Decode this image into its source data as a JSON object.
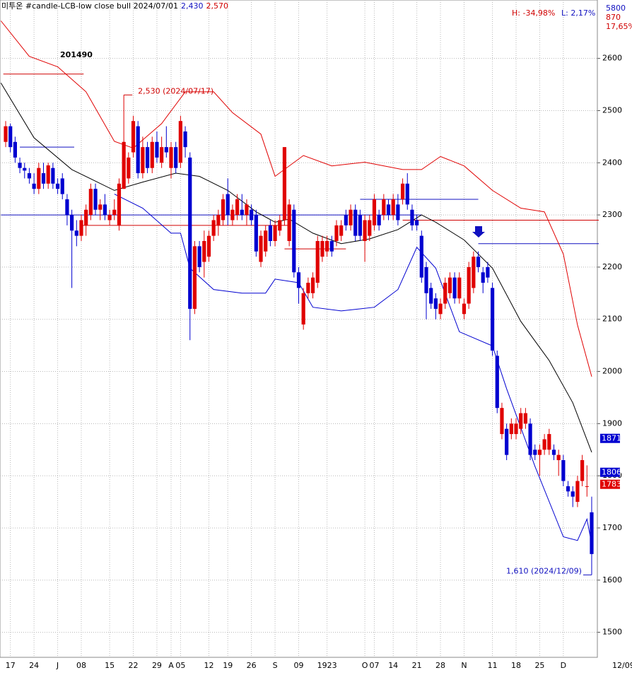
{
  "chart_data": {
    "type": "candlestick",
    "title_parts": [
      {
        "text": "미투온 #candle-LCB-low close bull  2024/07/01",
        "color": "#000000"
      },
      {
        "text": "2,430",
        "color": "#1010c0"
      },
      {
        "text": "2,570",
        "color": "#d00000"
      }
    ],
    "code": "201490",
    "high_label": "H: -34,98%",
    "low_label": "L: 2,17%",
    "corner_labels": [
      "5800",
      "870",
      "17,65%"
    ],
    "annotations": [
      {
        "text": "2,530 (2024/07/17)",
        "color": "#d00000",
        "index": 25,
        "price": 2530
      },
      {
        "text": "1,610 (2024/12/09)",
        "color": "#1010c0",
        "index": 124,
        "price": 1610
      }
    ],
    "last_date": "12/09",
    "up_color": "#e00000",
    "down_color": "#0000d0",
    "open": [
      2440,
      2470,
      2440,
      2400,
      2390,
      2380,
      2360,
      2350,
      2380,
      2360,
      2390,
      2360,
      2370,
      2330,
      2300,
      2270,
      2260,
      2280,
      2300,
      2350,
      2310,
      2320,
      2290,
      2300,
      2280,
      2350,
      2370,
      2420,
      2470,
      2380,
      2430,
      2390,
      2440,
      2400,
      2430,
      2390,
      2430,
      2400,
      2460,
      2410,
      2120,
      2240,
      2210,
      2220,
      2260,
      2280,
      2290,
      2340,
      2290,
      2300,
      2310,
      2300,
      2310,
      2300,
      2210,
      2230,
      2280,
      2250,
      2270,
      2290,
      2250,
      2310,
      2190,
      2090,
      2150,
      2150,
      2170,
      2220,
      2230,
      2250,
      2250,
      2260,
      2300,
      2280,
      2310,
      2300,
      2250,
      2260,
      2280,
      2300,
      2300,
      2320,
      2300,
      2320,
      2330,
      2360,
      2310,
      2290,
      2260,
      2200,
      2160,
      2140,
      2110,
      2130,
      2150,
      2180,
      2140,
      2110,
      2130,
      2160,
      2220,
      2190,
      2200,
      2160,
      2030,
      1880,
      1890,
      1880,
      1880,
      1890,
      1900,
      1900,
      1850,
      1840,
      1850,
      1850,
      1850,
      1830,
      1830,
      1780,
      1770,
      1750,
      1790,
      1780,
      1730
    ],
    "high": [
      2480,
      2475,
      2450,
      2410,
      2400,
      2390,
      2380,
      2400,
      2400,
      2400,
      2400,
      2370,
      2380,
      2340,
      2310,
      2290,
      2300,
      2320,
      2360,
      2360,
      2330,
      2340,
      2310,
      2330,
      2370,
      2530,
      2420,
      2490,
      2480,
      2450,
      2440,
      2450,
      2460,
      2450,
      2470,
      2440,
      2440,
      2490,
      2470,
      2420,
      2250,
      2250,
      2270,
      2270,
      2300,
      2310,
      2340,
      2370,
      2320,
      2340,
      2340,
      2330,
      2320,
      2310,
      2270,
      2280,
      2290,
      2290,
      2300,
      2430,
      2330,
      2320,
      2200,
      2160,
      2180,
      2190,
      2260,
      2260,
      2260,
      2260,
      2290,
      2290,
      2310,
      2320,
      2320,
      2310,
      2300,
      2300,
      2340,
      2310,
      2340,
      2330,
      2340,
      2340,
      2370,
      2380,
      2320,
      2300,
      2270,
      2210,
      2170,
      2150,
      2140,
      2180,
      2190,
      2190,
      2190,
      2140,
      2210,
      2230,
      2230,
      2200,
      2210,
      2170,
      2040,
      1940,
      1900,
      1910,
      1910,
      1930,
      1930,
      1910,
      1860,
      1860,
      1880,
      1890,
      1860,
      1850,
      1840,
      1790,
      1780,
      1800,
      1840,
      1820,
      1760
    ],
    "low": [
      2430,
      2420,
      2400,
      2380,
      2370,
      2360,
      2340,
      2340,
      2350,
      2350,
      2350,
      2340,
      2330,
      2280,
      2160,
      2240,
      2250,
      2260,
      2290,
      2300,
      2290,
      2290,
      2280,
      2290,
      2270,
      2350,
      2360,
      2410,
      2370,
      2370,
      2380,
      2380,
      2400,
      2390,
      2410,
      2370,
      2380,
      2390,
      2410,
      2060,
      2110,
      2190,
      2180,
      2210,
      2250,
      2260,
      2280,
      2280,
      2280,
      2290,
      2290,
      2280,
      2280,
      2220,
      2200,
      2220,
      2240,
      2240,
      2260,
      2280,
      2240,
      2180,
      2130,
      2080,
      2140,
      2140,
      2160,
      2210,
      2220,
      2220,
      2240,
      2250,
      2270,
      2270,
      2250,
      2250,
      2210,
      2250,
      2270,
      2270,
      2290,
      2290,
      2290,
      2280,
      2320,
      2310,
      2270,
      2270,
      2170,
      2100,
      2120,
      2100,
      2100,
      2120,
      2140,
      2130,
      2130,
      2100,
      2120,
      2150,
      2190,
      2150,
      2170,
      2030,
      1920,
      1870,
      1830,
      1870,
      1870,
      1880,
      1890,
      1830,
      1830,
      1800,
      1840,
      1840,
      1830,
      1800,
      1780,
      1760,
      1740,
      1740,
      1780,
      1760,
      1610
    ],
    "close": [
      2470,
      2430,
      2410,
      2390,
      2385,
      2370,
      2350,
      2390,
      2360,
      2395,
      2360,
      2350,
      2340,
      2300,
      2270,
      2260,
      2290,
      2310,
      2350,
      2310,
      2320,
      2300,
      2300,
      2310,
      2360,
      2440,
      2410,
      2480,
      2380,
      2430,
      2390,
      2440,
      2410,
      2430,
      2420,
      2430,
      2390,
      2480,
      2430,
      2120,
      2240,
      2200,
      2250,
      2260,
      2290,
      2300,
      2330,
      2300,
      2310,
      2330,
      2300,
      2320,
      2290,
      2230,
      2260,
      2270,
      2250,
      2280,
      2290,
      2430,
      2320,
      2190,
      2160,
      2150,
      2170,
      2180,
      2250,
      2250,
      2250,
      2230,
      2280,
      2280,
      2280,
      2310,
      2260,
      2260,
      2290,
      2290,
      2330,
      2280,
      2330,
      2300,
      2330,
      2290,
      2360,
      2320,
      2280,
      2280,
      2180,
      2150,
      2130,
      2120,
      2130,
      2170,
      2180,
      2140,
      2180,
      2130,
      2200,
      2220,
      2200,
      2170,
      2180,
      2040,
      1930,
      1930,
      1840,
      1900,
      1900,
      1920,
      1920,
      1840,
      1840,
      1850,
      1870,
      1880,
      1840,
      1840,
      1790,
      1770,
      1760,
      1790,
      1830,
      1780,
      1650
    ],
    "lines": [
      {
        "name": "middle",
        "color": "#000000",
        "x": [
          -1,
          6,
          14,
          23,
          29,
          36,
          41,
          47,
          53,
          57,
          60,
          65,
          71,
          77,
          83,
          88,
          91,
          97,
          103,
          109,
          115,
          120,
          124
        ],
        "values": [
          2553,
          2448,
          2387,
          2347,
          2363,
          2380,
          2374,
          2347,
          2306,
          2286,
          2292,
          2265,
          2245,
          2254,
          2272,
          2300,
          2286,
          2252,
          2198,
          2096,
          2021,
          1940,
          1845
        ]
      },
      {
        "name": "upper",
        "color": "#e00000",
        "x": [
          -1,
          5,
          11,
          17,
          23,
          27,
          33,
          38,
          44,
          48,
          54,
          57,
          63,
          69,
          76,
          84,
          88,
          92,
          97,
          103,
          109,
          114,
          118,
          121,
          124
        ],
        "values": [
          2672,
          2604,
          2584,
          2536,
          2441,
          2428,
          2475,
          2536,
          2536,
          2496,
          2455,
          2374,
          2414,
          2394,
          2401,
          2387,
          2387,
          2412,
          2394,
          2347,
          2313,
          2306,
          2225,
          2089,
          1990
        ]
      },
      {
        "name": "lower",
        "color": "#0000d0",
        "x": [
          23,
          29,
          35,
          37,
          39,
          44,
          50,
          55,
          57,
          62,
          65,
          71,
          78,
          83,
          87,
          91,
          96,
          103,
          106,
          112,
          118,
          121,
          123,
          124
        ],
        "values": [
          2340,
          2313,
          2265,
          2265,
          2198,
          2157,
          2150,
          2150,
          2177,
          2170,
          2123,
          2116,
          2123,
          2157,
          2238,
          2198,
          2076,
          2049,
          1967,
          1818,
          1683,
          1676,
          1717,
          1669
        ]
      }
    ],
    "hlines": [
      {
        "value": 2570,
        "color": "#d00000",
        "from": -0.5,
        "to": 16.5
      },
      {
        "value": 2430,
        "color": "#1010c0",
        "from": 3,
        "to": 14.5
      },
      {
        "value": 2300,
        "color": "#1010c0",
        "from": -1,
        "to": 88
      },
      {
        "value": 2280,
        "color": "#d00000",
        "from": 16,
        "to": 60
      },
      {
        "value": 2330,
        "color": "#1010c0",
        "from": 75,
        "to": 100
      },
      {
        "value": 2290,
        "color": "#d00000",
        "from": 84,
        "to": 125.5
      },
      {
        "value": 2245,
        "color": "#1010c0",
        "from": 100,
        "to": 125.5
      },
      {
        "value": 2235,
        "color": "#d00000",
        "from": 59,
        "to": 72
      }
    ],
    "price_labels": [
      {
        "value": 1871,
        "color": "#0000d0"
      },
      {
        "value": 1806,
        "color": "#0000d0"
      },
      {
        "value": 1783,
        "color": "#e00000"
      }
    ],
    "ylim": [
      1452,
      2712
    ],
    "yticks": [
      1500,
      1600,
      1700,
      1800,
      1900,
      2000,
      2100,
      2200,
      2300,
      2400,
      2500,
      2600
    ],
    "xlim": [
      -1.2,
      125.2
    ],
    "xticks": [
      {
        "value": 1,
        "label": "17"
      },
      {
        "value": 6,
        "label": "24"
      },
      {
        "value": 11,
        "label": "J"
      },
      {
        "value": 16,
        "label": "08"
      },
      {
        "value": 22,
        "label": "15"
      },
      {
        "value": 27,
        "label": "22"
      },
      {
        "value": 32,
        "label": "29"
      },
      {
        "value": 35,
        "label": "A"
      },
      {
        "value": 37,
        "label": "05"
      },
      {
        "value": 43,
        "label": "12"
      },
      {
        "value": 47,
        "label": "19"
      },
      {
        "value": 52,
        "label": "26"
      },
      {
        "value": 57,
        "label": "S"
      },
      {
        "value": 62,
        "label": "09"
      },
      {
        "value": 68,
        "label": "1923"
      },
      {
        "value": 76,
        "label": "O"
      },
      {
        "value": 78,
        "label": "07"
      },
      {
        "value": 82,
        "label": "14"
      },
      {
        "value": 87,
        "label": "21"
      },
      {
        "value": 92,
        "label": "28"
      },
      {
        "value": 97,
        "label": "N"
      },
      {
        "value": 103,
        "label": "11"
      },
      {
        "value": 108,
        "label": "18"
      },
      {
        "value": 113,
        "label": "25"
      },
      {
        "value": 118,
        "label": "D"
      }
    ],
    "grid": true
  }
}
